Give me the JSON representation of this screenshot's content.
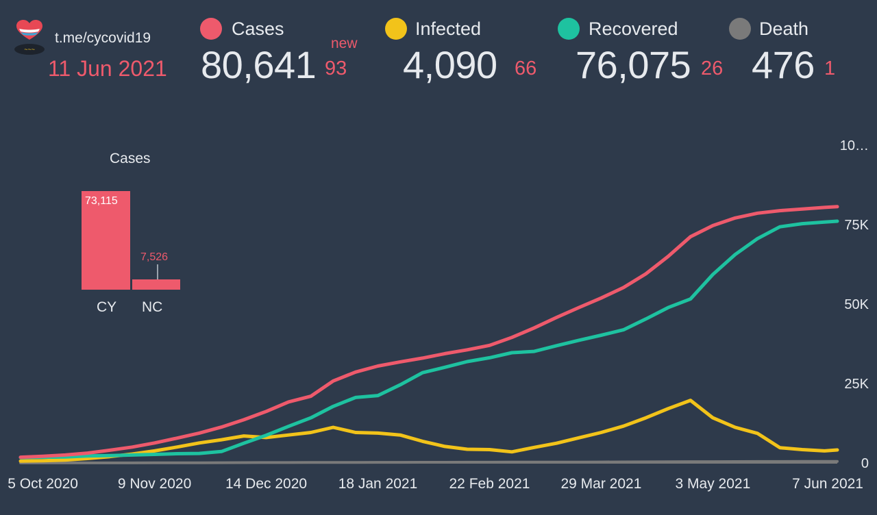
{
  "header": {
    "channel": "t.me/cycovid19",
    "date": "11 Jun 2021",
    "new_label": "new"
  },
  "colors": {
    "background": "#2e3a4b",
    "cases": "#ee5a6c",
    "infected": "#f2c31a",
    "recovered": "#1ec2a0",
    "death": "#7a7a7a",
    "text": "#e7eaee"
  },
  "stats": [
    {
      "label": "Cases",
      "value": "80,641",
      "new": "93"
    },
    {
      "label": "Infected",
      "value": "4,090",
      "new": "66"
    },
    {
      "label": "Recovered",
      "value": "76,075",
      "new": "26"
    },
    {
      "label": "Death",
      "value": "476",
      "new": "1"
    }
  ],
  "icons": {
    "logo": "heart-with-cyprus-flag-logo"
  },
  "chart_data": [
    {
      "type": "line",
      "title": "",
      "x_labels": [
        "5 Oct 2020",
        "9 Nov 2020",
        "14 Dec 2020",
        "18 Jan 2021",
        "22 Feb 2021",
        "29 Mar 2021",
        "3 May 2021",
        "7 Jun 2021"
      ],
      "y_tick_labels": [
        "0",
        "25K",
        "50K",
        "75K",
        "10…"
      ],
      "ylim": [
        0,
        100000
      ],
      "grid": false,
      "legend": "top",
      "x": [
        "2020-09-28",
        "2020-10-05",
        "2020-10-12",
        "2020-10-19",
        "2020-10-26",
        "2020-11-02",
        "2020-11-09",
        "2020-11-16",
        "2020-11-23",
        "2020-11-30",
        "2020-12-07",
        "2020-12-14",
        "2020-12-21",
        "2020-12-28",
        "2021-01-04",
        "2021-01-11",
        "2021-01-18",
        "2021-01-25",
        "2021-02-01",
        "2021-02-08",
        "2021-02-15",
        "2021-02-22",
        "2021-03-01",
        "2021-03-08",
        "2021-03-15",
        "2021-03-22",
        "2021-03-29",
        "2021-04-05",
        "2021-04-12",
        "2021-04-19",
        "2021-04-26",
        "2021-05-03",
        "2021-05-10",
        "2021-05-17",
        "2021-05-24",
        "2021-05-31",
        "2021-06-07",
        "2021-06-11"
      ],
      "series": [
        {
          "name": "Cases",
          "color": "#ee5a6c",
          "values": [
            1800,
            2100,
            2500,
            3100,
            4000,
            5000,
            6300,
            7800,
            9400,
            11300,
            13600,
            16200,
            19200,
            21000,
            25800,
            28600,
            30500,
            31800,
            33000,
            34400,
            35600,
            37000,
            39500,
            42500,
            45800,
            48900,
            51900,
            55200,
            59500,
            65000,
            71200,
            74700,
            77100,
            78600,
            79400,
            79900,
            80400,
            80641
          ]
        },
        {
          "name": "Infected",
          "color": "#f2c31a",
          "values": [
            600,
            700,
            900,
            1400,
            2000,
            2800,
            3800,
            5000,
            6300,
            7300,
            8500,
            8000,
            8800,
            9600,
            11200,
            9600,
            9400,
            8800,
            6800,
            5200,
            4300,
            4200,
            3500,
            4900,
            6200,
            7900,
            9600,
            11600,
            14200,
            17100,
            19700,
            14200,
            11200,
            9300,
            4800,
            4200,
            3800,
            4090
          ]
        },
        {
          "name": "Recovered",
          "color": "#1ec2a0",
          "values": [
            1700,
            1800,
            1900,
            2200,
            2300,
            2500,
            2700,
            2900,
            3000,
            3600,
            6200,
            8700,
            11500,
            14200,
            17800,
            20600,
            21200,
            24600,
            28400,
            30100,
            31900,
            33100,
            34700,
            35100,
            36900,
            38600,
            40200,
            41900,
            45300,
            48900,
            51600,
            59300,
            65600,
            70600,
            74300,
            75300,
            75800,
            76075
          ]
        },
        {
          "name": "Death",
          "color": "#7a7a7a",
          "values": [
            20,
            22,
            24,
            26,
            28,
            30,
            40,
            50,
            70,
            90,
            110,
            130,
            140,
            150,
            170,
            180,
            190,
            200,
            210,
            220,
            230,
            240,
            250,
            260,
            270,
            280,
            300,
            320,
            340,
            370,
            400,
            420,
            440,
            450,
            460,
            470,
            474,
            476
          ]
        }
      ]
    },
    {
      "type": "bar",
      "title": "Cases",
      "categories": [
        "CY",
        "NC"
      ],
      "values": [
        73115,
        7526
      ],
      "value_labels": [
        "73,115",
        "7,526"
      ]
    }
  ]
}
